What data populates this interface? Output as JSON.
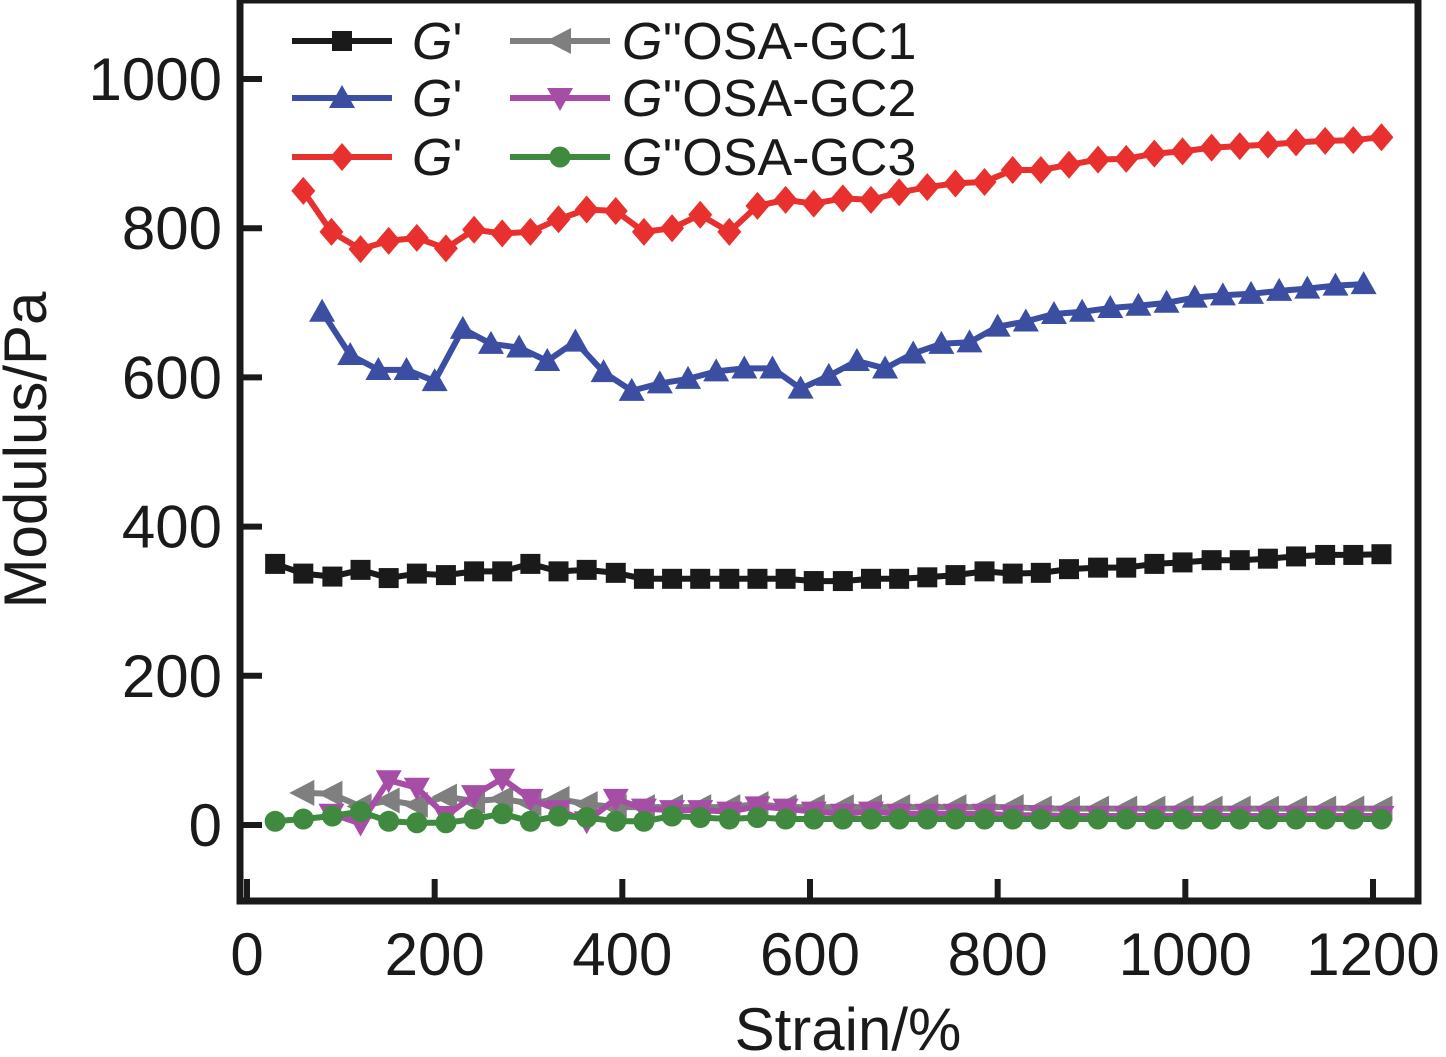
{
  "chart_data": {
    "type": "line",
    "title": "",
    "xlabel": "Strain/%",
    "ylabel": "Modulus/Pa",
    "xlim": [
      0,
      1250
    ],
    "ylim": [
      -100,
      1100
    ],
    "xticks": [
      0,
      200,
      400,
      600,
      800,
      1000,
      1200
    ],
    "yticks": [
      0,
      200,
      400,
      600,
      800,
      1000
    ],
    "xtick_labels": [
      "0",
      "200",
      "400",
      "600",
      "800",
      "1000",
      "1200"
    ],
    "ytick_labels": [
      "0",
      "200",
      "400",
      "600",
      "800",
      "1000"
    ],
    "grid": false,
    "legend_position": "top-left",
    "series": [
      {
        "name": "G'",
        "legend_prefix": "G",
        "legend_suffix": "'",
        "color": "#1a1a1a",
        "marker": "square",
        "x": [
          30,
          60,
          91,
          121,
          151,
          181,
          212,
          242,
          272,
          302,
          332,
          362,
          393,
          423,
          453,
          483,
          514,
          544,
          574,
          604,
          635,
          665,
          695,
          725,
          755,
          786,
          816,
          846,
          876,
          907,
          937,
          967,
          997,
          1028,
          1058,
          1088,
          1118,
          1149,
          1179,
          1209
        ],
        "values": [
          350,
          337,
          333,
          342,
          331,
          337,
          335,
          340,
          340,
          350,
          340,
          342,
          338,
          330,
          330,
          330,
          330,
          330,
          330,
          327,
          327,
          330,
          330,
          332,
          335,
          340,
          337,
          338,
          343,
          345,
          345,
          350,
          352,
          355,
          355,
          357,
          360,
          362,
          362,
          363
        ]
      },
      {
        "name": "G'",
        "legend_prefix": "G",
        "legend_suffix": "'",
        "color": "#3b4ea1",
        "marker": "triangle-up",
        "x": [
          80,
          110,
          140,
          170,
          200,
          230,
          260,
          290,
          320,
          350,
          380,
          410,
          440,
          470,
          500,
          530,
          560,
          590,
          620,
          650,
          680,
          710,
          740,
          770,
          800,
          830,
          860,
          890,
          920,
          950,
          980,
          1010,
          1040,
          1070,
          1100,
          1130,
          1160,
          1190
        ],
        "values": [
          688,
          630,
          610,
          610,
          595,
          665,
          645,
          640,
          622,
          648,
          607,
          582,
          592,
          598,
          608,
          612,
          612,
          585,
          602,
          622,
          612,
          632,
          645,
          647,
          668,
          675,
          685,
          688,
          693,
          696,
          700,
          707,
          710,
          712,
          716,
          719,
          723,
          725
        ]
      },
      {
        "name": "G'",
        "legend_prefix": "G",
        "legend_suffix": "'",
        "color": "#e8312e",
        "marker": "diamond",
        "x": [
          60,
          90,
          121,
          151,
          181,
          212,
          242,
          272,
          302,
          332,
          362,
          393,
          423,
          453,
          483,
          514,
          544,
          574,
          604,
          635,
          665,
          695,
          725,
          755,
          786,
          816,
          846,
          876,
          907,
          937,
          967,
          997,
          1028,
          1058,
          1088,
          1118,
          1149,
          1179,
          1209
        ],
        "values": [
          850,
          795,
          772,
          783,
          787,
          773,
          798,
          793,
          795,
          812,
          825,
          823,
          795,
          800,
          818,
          795,
          830,
          838,
          833,
          840,
          838,
          848,
          855,
          860,
          862,
          878,
          878,
          885,
          892,
          893,
          900,
          903,
          908,
          910,
          912,
          915,
          917,
          918,
          922
        ]
      },
      {
        "name": "G''OSA-GC1",
        "legend_prefix": "G",
        "legend_suffix": "''OSA-GC1",
        "color": "#7f7f7f",
        "marker": "triangle-left",
        "x": [
          60,
          90,
          121,
          151,
          181,
          212,
          242,
          272,
          302,
          332,
          362,
          393,
          423,
          453,
          483,
          514,
          544,
          574,
          604,
          635,
          665,
          695,
          725,
          755,
          786,
          816,
          846,
          876,
          907,
          937,
          967,
          997,
          1028,
          1058,
          1088,
          1118,
          1149,
          1179,
          1209
        ],
        "values": [
          43,
          42,
          25,
          33,
          27,
          38,
          32,
          35,
          29,
          35,
          28,
          24,
          24,
          24,
          24,
          24,
          28,
          24,
          24,
          24,
          24,
          24,
          24,
          24,
          24,
          24,
          22,
          22,
          22,
          22,
          22,
          22,
          22,
          22,
          22,
          22,
          22,
          22,
          22
        ]
      },
      {
        "name": "G''OSA-GC2",
        "legend_prefix": "G",
        "legend_suffix": "''OSA-GC2",
        "color": "#a64ea6",
        "marker": "triangle-down",
        "x": [
          90,
          121,
          151,
          181,
          212,
          242,
          272,
          302,
          332,
          362,
          393,
          423,
          453,
          483,
          514,
          544,
          574,
          604,
          635,
          665,
          695,
          725,
          755,
          786,
          816,
          846,
          876,
          907,
          937,
          967,
          997,
          1028,
          1058,
          1088,
          1118,
          1149,
          1179,
          1209
        ],
        "values": [
          15,
          2,
          60,
          50,
          12,
          40,
          62,
          35,
          20,
          5,
          35,
          22,
          20,
          20,
          18,
          25,
          22,
          18,
          15,
          18,
          15,
          15,
          15,
          15,
          13,
          13,
          12,
          12,
          12,
          12,
          12,
          12,
          12,
          12,
          12,
          12,
          12,
          12
        ]
      },
      {
        "name": "G''OSA-GC3",
        "legend_prefix": "G",
        "legend_suffix": "''OSA-GC3",
        "color": "#3f8a3f",
        "marker": "circle",
        "x": [
          30,
          60,
          91,
          121,
          151,
          181,
          212,
          242,
          272,
          302,
          332,
          362,
          393,
          423,
          453,
          483,
          514,
          544,
          574,
          604,
          635,
          665,
          695,
          725,
          755,
          786,
          816,
          846,
          876,
          907,
          937,
          967,
          997,
          1028,
          1058,
          1088,
          1118,
          1149,
          1179,
          1209
        ],
        "values": [
          5,
          8,
          12,
          18,
          5,
          3,
          3,
          8,
          15,
          5,
          12,
          10,
          5,
          5,
          12,
          10,
          8,
          10,
          8,
          8,
          8,
          8,
          8,
          8,
          8,
          8,
          8,
          8,
          8,
          8,
          8,
          8,
          8,
          8,
          8,
          8,
          8,
          8,
          8,
          8
        ]
      }
    ]
  }
}
